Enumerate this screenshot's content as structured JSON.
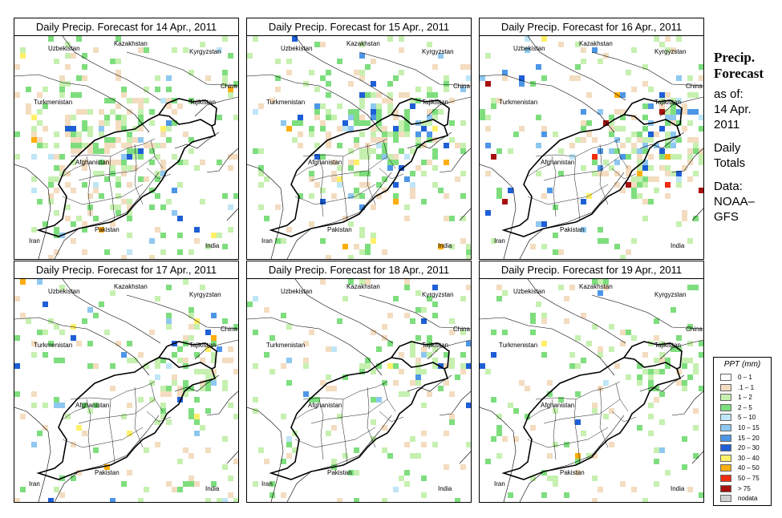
{
  "panels": [
    {
      "title": "Daily Precip. Forecast for  14 Apr., 2011"
    },
    {
      "title": "Daily Precip. Forecast for  15 Apr., 2011"
    },
    {
      "title": "Daily Precip. Forecast for  16 Apr., 2011"
    },
    {
      "title": "Daily Precip. Forecast for  17 Apr., 2011"
    },
    {
      "title": "Daily Precip. Forecast for  18 Apr., 2011"
    },
    {
      "title": "Daily Precip. Forecast for  19 Apr., 2011"
    }
  ],
  "countries": {
    "kazakhstan": "Kazakhstan",
    "uzbekistan": "Uzbekistan",
    "kyrgyzstan": "Kyrgyzstan",
    "china": "China",
    "turkmenistan": "Turkmenistan",
    "tajikistan": "Tajikistan",
    "afghanistan": "Afghanistan",
    "pakistan": "Pakistan",
    "iran": "Iran",
    "india": "India"
  },
  "sidebar": {
    "heading1": "Precip.",
    "heading2": "Forecast",
    "asof": "as of:",
    "date1": "14 Apr.",
    "date2": "2011",
    "daily": "Daily",
    "totals": "Totals",
    "data": "Data:",
    "noaa": "NOAA–",
    "gfs": "GFS"
  },
  "legend": {
    "title": "PPT (mm)",
    "items": [
      {
        "label": "0 – 1",
        "color": "#ffffff"
      },
      {
        "label": ".1 – 1",
        "color": "#f3dcc0"
      },
      {
        "label": "1 – 2",
        "color": "#c6f0b0"
      },
      {
        "label": "2 – 5",
        "color": "#7ede7e"
      },
      {
        "label": "5 – 10",
        "color": "#bfe6f7"
      },
      {
        "label": "10 – 15",
        "color": "#8ec8f0"
      },
      {
        "label": "15 – 20",
        "color": "#4d96e6"
      },
      {
        "label": "20 – 30",
        "color": "#1f5fd6"
      },
      {
        "label": "30 – 40",
        "color": "#fff06a"
      },
      {
        "label": "40 – 50",
        "color": "#ffae10"
      },
      {
        "label": "50 – 75",
        "color": "#ee2d10"
      },
      {
        "label": "> 75",
        "color": "#a81010"
      },
      {
        "label": "nodata",
        "color": "#d0d0d0"
      }
    ]
  }
}
